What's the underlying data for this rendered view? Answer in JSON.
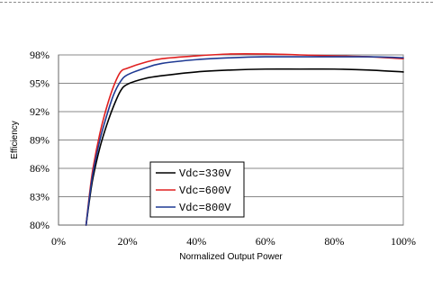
{
  "chart_data": {
    "type": "line",
    "title": "",
    "xlabel": "Normalized Output Power",
    "ylabel": "Efficiency",
    "xlim": [
      0,
      100
    ],
    "ylim": [
      80,
      98
    ],
    "x_ticks": [
      0,
      20,
      40,
      60,
      80,
      100
    ],
    "x_tick_labels": [
      "0%",
      "20%",
      "40%",
      "60%",
      "80%",
      "100%"
    ],
    "y_ticks": [
      80,
      83,
      86,
      89,
      92,
      95,
      98
    ],
    "y_tick_labels": [
      "80%",
      "83%",
      "86%",
      "89%",
      "92%",
      "95%",
      "98%"
    ],
    "grid": "horizontal",
    "legend_position": "center-left",
    "series": [
      {
        "name": "Vdc=330V",
        "color": "#000000",
        "x": [
          8,
          9,
          10,
          12,
          14,
          16,
          18,
          20,
          25,
          30,
          40,
          50,
          60,
          70,
          80,
          90,
          100
        ],
        "y": [
          80.0,
          82.7,
          85.0,
          88.2,
          90.6,
          92.6,
          94.2,
          94.9,
          95.5,
          95.8,
          96.2,
          96.4,
          96.5,
          96.5,
          96.5,
          96.4,
          96.2
        ]
      },
      {
        "name": "Vdc=600V",
        "color": "#e02020",
        "x": [
          8,
          9,
          10,
          12,
          14,
          16,
          18,
          20,
          25,
          30,
          40,
          50,
          60,
          70,
          80,
          90,
          100
        ],
        "y": [
          80.0,
          83.3,
          86.0,
          89.7,
          92.5,
          94.7,
          96.2,
          96.6,
          97.2,
          97.6,
          97.9,
          98.1,
          98.1,
          98.0,
          97.9,
          97.8,
          97.6
        ]
      },
      {
        "name": "Vdc=800V",
        "color": "#1f3a93",
        "x": [
          8,
          9,
          10,
          12,
          14,
          16,
          18,
          20,
          25,
          30,
          40,
          50,
          60,
          70,
          80,
          90,
          100
        ],
        "y": [
          80.0,
          83.0,
          85.5,
          89.0,
          91.6,
          93.8,
          95.2,
          95.9,
          96.6,
          97.1,
          97.5,
          97.7,
          97.8,
          97.8,
          97.8,
          97.8,
          97.7
        ]
      }
    ]
  }
}
